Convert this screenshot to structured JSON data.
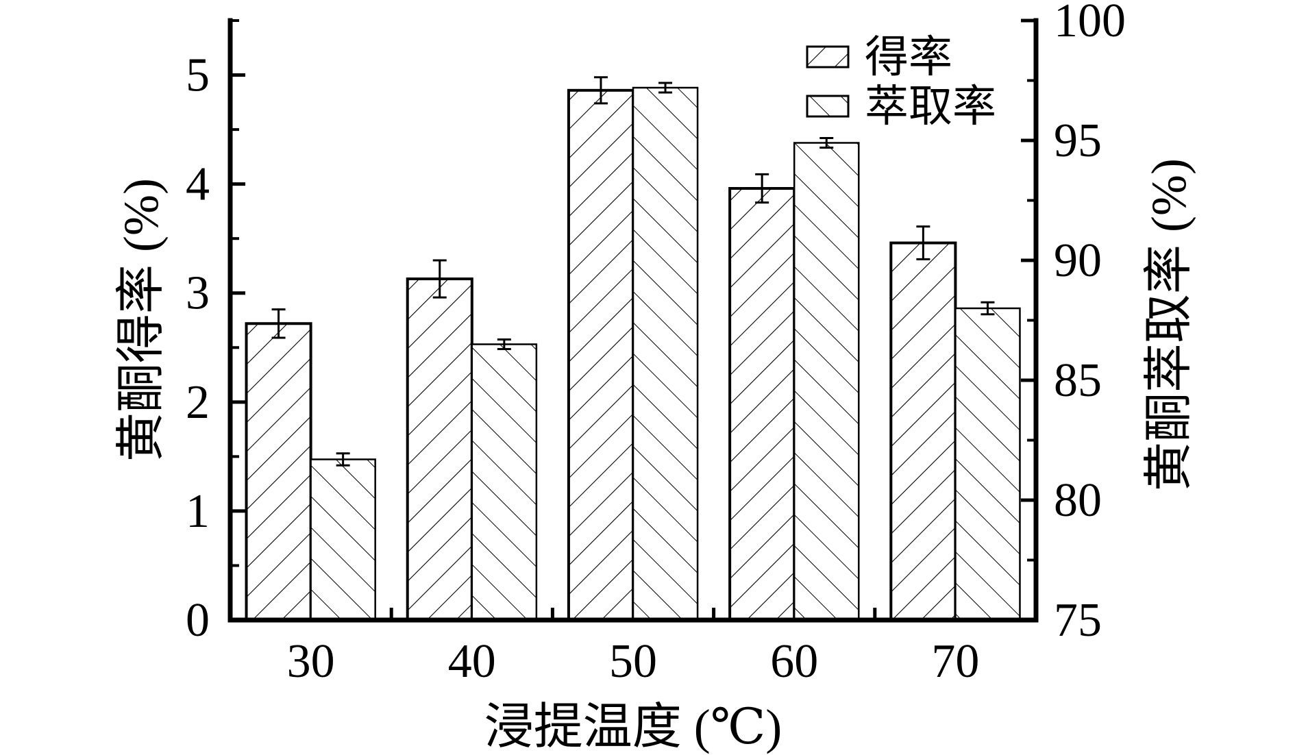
{
  "figure": {
    "background_color": "#ffffff",
    "ink_color": "#000000"
  },
  "chart_data": {
    "type": "bar",
    "categories": [
      "30",
      "40",
      "50",
      "60",
      "70"
    ],
    "xlabel": "浸提温度 (℃)",
    "series": [
      {
        "name": "得率",
        "axis": "left",
        "hatch": "forward-diagonal",
        "values": [
          2.72,
          3.13,
          4.86,
          3.96,
          3.46
        ],
        "errors": [
          0.13,
          0.17,
          0.12,
          0.13,
          0.15
        ]
      },
      {
        "name": "萃取率",
        "axis": "right",
        "hatch": "backward-diagonal",
        "values": [
          81.7,
          86.5,
          97.2,
          94.9,
          88.0
        ],
        "errors": [
          0.25,
          0.2,
          0.2,
          0.2,
          0.25
        ]
      }
    ],
    "left_axis": {
      "label": "黄酮得率 (%)",
      "min": 0,
      "max": 5.5,
      "major_ticks": [
        0,
        1,
        2,
        3,
        4,
        5
      ],
      "minor_step": 0.5
    },
    "right_axis": {
      "label": "黄酮萃取率 (%)",
      "min": 75,
      "max": 100,
      "major_ticks": [
        75,
        80,
        85,
        90,
        95,
        100
      ],
      "minor_step": 2.5
    },
    "legend": {
      "position": "top-right",
      "items": [
        {
          "label": "得率",
          "hatch": "forward-diagonal"
        },
        {
          "label": "萃取率",
          "hatch": "backward-diagonal"
        }
      ]
    },
    "grid": false,
    "bar_fill": "#ffffff",
    "bar_edge": "#000000"
  }
}
